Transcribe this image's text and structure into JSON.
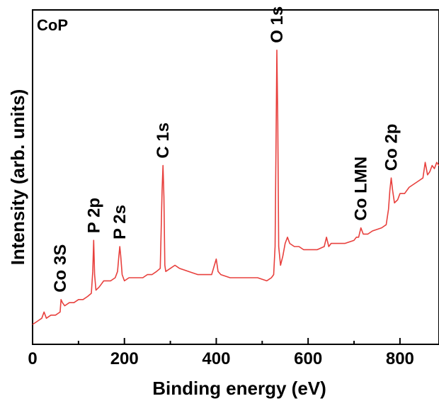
{
  "chart_data": {
    "type": "line",
    "panel_label": "CoP",
    "xlabel": "Binding energy (eV)",
    "ylabel": "Intensity (arb. units)",
    "xlim": [
      0,
      885
    ],
    "ylim": [
      0,
      1
    ],
    "x_ticks": [
      0,
      200,
      400,
      600,
      800
    ],
    "y_ticks_labeled": false,
    "grid": false,
    "legend": "none",
    "color": "#e8403d",
    "series": [
      {
        "x": [
          0,
          10,
          20,
          25,
          30,
          40,
          50,
          60,
          62,
          65,
          70,
          80,
          90,
          100,
          110,
          120,
          128,
          131,
          133,
          135,
          138,
          145,
          150,
          155,
          160,
          170,
          180,
          185,
          188,
          190,
          192,
          195,
          200,
          210,
          220,
          230,
          240,
          250,
          260,
          270,
          278,
          280,
          282,
          284,
          286,
          288,
          290,
          300,
          310,
          320,
          340,
          360,
          380,
          390,
          396,
          400,
          404,
          410,
          430,
          450,
          470,
          490,
          510,
          520,
          525,
          528,
          530,
          532,
          534,
          536,
          540,
          545,
          550,
          555,
          560,
          570,
          580,
          590,
          600,
          620,
          635,
          640,
          645,
          650,
          660,
          680,
          700,
          705,
          710,
          715,
          720,
          730,
          740,
          760,
          770,
          775,
          778,
          781,
          784,
          788,
          795,
          800,
          810,
          820,
          830,
          840,
          850,
          855,
          860,
          865,
          870,
          875,
          880,
          885
        ],
        "y": [
          0.05,
          0.06,
          0.07,
          0.09,
          0.07,
          0.08,
          0.08,
          0.09,
          0.13,
          0.12,
          0.11,
          0.12,
          0.12,
          0.13,
          0.13,
          0.14,
          0.15,
          0.22,
          0.32,
          0.21,
          0.16,
          0.17,
          0.18,
          0.19,
          0.19,
          0.19,
          0.2,
          0.22,
          0.27,
          0.3,
          0.27,
          0.21,
          0.19,
          0.2,
          0.2,
          0.2,
          0.2,
          0.21,
          0.21,
          0.22,
          0.23,
          0.35,
          0.48,
          0.56,
          0.46,
          0.24,
          0.22,
          0.23,
          0.24,
          0.23,
          0.22,
          0.21,
          0.21,
          0.21,
          0.24,
          0.26,
          0.22,
          0.21,
          0.2,
          0.2,
          0.2,
          0.2,
          0.19,
          0.2,
          0.21,
          0.3,
          0.62,
          0.93,
          0.7,
          0.3,
          0.24,
          0.27,
          0.31,
          0.33,
          0.31,
          0.3,
          0.3,
          0.29,
          0.29,
          0.29,
          0.3,
          0.33,
          0.3,
          0.31,
          0.31,
          0.31,
          0.32,
          0.33,
          0.33,
          0.36,
          0.34,
          0.34,
          0.35,
          0.36,
          0.37,
          0.42,
          0.48,
          0.52,
          0.48,
          0.44,
          0.45,
          0.47,
          0.47,
          0.49,
          0.5,
          0.51,
          0.52,
          0.57,
          0.53,
          0.54,
          0.56,
          0.55,
          0.57,
          0.56
        ]
      }
    ],
    "annotations": [
      {
        "text": "Co 3S",
        "x": 60,
        "y": 0.13
      },
      {
        "text": "P 2p",
        "x": 133,
        "y": 0.32
      },
      {
        "text": "P 2s",
        "x": 190,
        "y": 0.3
      },
      {
        "text": "C 1s",
        "x": 284,
        "y": 0.56
      },
      {
        "text": "O 1s",
        "x": 532,
        "y": 0.93
      },
      {
        "text": "Co LMN",
        "x": 715,
        "y": 0.36
      },
      {
        "text": "Co 2p",
        "x": 781,
        "y": 0.52
      }
    ]
  }
}
